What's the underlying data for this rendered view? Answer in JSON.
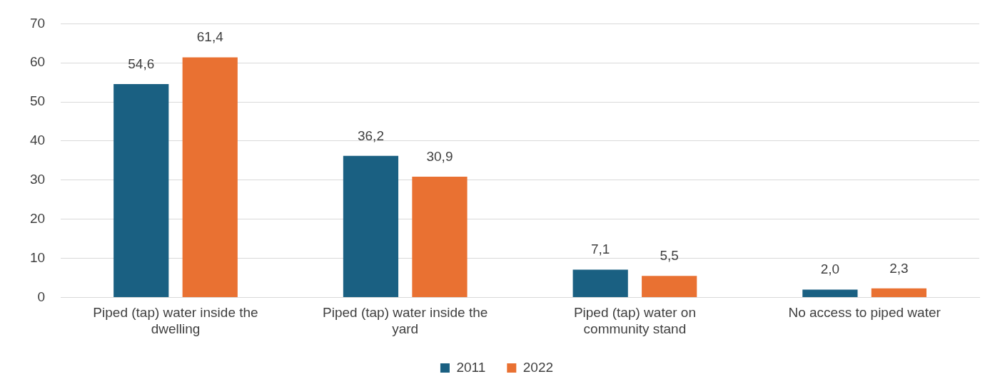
{
  "chart_data": {
    "type": "bar",
    "categories": [
      "Piped (tap) water inside the dwelling",
      "Piped (tap) water inside the yard",
      "Piped (tap) water on community stand",
      "No access to piped water"
    ],
    "series": [
      {
        "name": "2011",
        "color": "#1a6082",
        "values": [
          54.6,
          36.2,
          7.1,
          2.0
        ],
        "value_labels": [
          "54,6",
          "36,2",
          "7,1",
          "2,0"
        ]
      },
      {
        "name": "2022",
        "color": "#e97132",
        "values": [
          61.4,
          30.9,
          5.5,
          2.3
        ],
        "value_labels": [
          "61,4",
          "30,9",
          "5,5",
          "2,3"
        ]
      }
    ],
    "ylim": [
      0,
      70
    ],
    "yticks": [
      0,
      10,
      20,
      30,
      40,
      50,
      60,
      70
    ],
    "grid": "y",
    "legend": "bottom"
  }
}
